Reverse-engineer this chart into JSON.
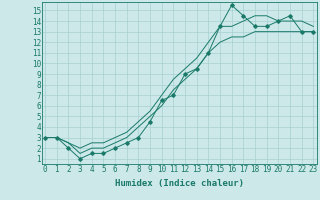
{
  "xlabel": "Humidex (Indice chaleur)",
  "bg_color": "#cce8e8",
  "grid_color": "#a8d0d0",
  "line_color": "#1a7a6a",
  "x_ticks": [
    0,
    1,
    2,
    3,
    4,
    5,
    6,
    7,
    8,
    9,
    10,
    11,
    12,
    13,
    14,
    15,
    16,
    17,
    18,
    19,
    20,
    21,
    22,
    23
  ],
  "y_ticks": [
    1,
    2,
    3,
    4,
    5,
    6,
    7,
    8,
    9,
    10,
    11,
    12,
    13,
    14,
    15
  ],
  "xlim": [
    -0.3,
    23.3
  ],
  "ylim": [
    0.5,
    15.8
  ],
  "line1_x": [
    0,
    1,
    2,
    3,
    4,
    5,
    6,
    7,
    8,
    9,
    10,
    11,
    12,
    13,
    14,
    15,
    16,
    17,
    18,
    19,
    20,
    21,
    22,
    23
  ],
  "line1_y": [
    3.0,
    3.0,
    2.0,
    1.0,
    1.5,
    1.5,
    2.0,
    2.5,
    3.0,
    4.5,
    6.5,
    7.0,
    9.0,
    9.5,
    11.0,
    13.5,
    15.5,
    14.5,
    13.5,
    13.5,
    14.0,
    14.5,
    13.0,
    13.0
  ],
  "line2_x": [
    0,
    1,
    2,
    3,
    4,
    5,
    6,
    7,
    8,
    9,
    10,
    11,
    12,
    13,
    14,
    15,
    16,
    17,
    18,
    19,
    20,
    21,
    22,
    23
  ],
  "line2_y": [
    3.0,
    3.0,
    2.5,
    1.5,
    2.0,
    2.0,
    2.5,
    3.0,
    4.0,
    5.0,
    6.0,
    7.5,
    8.5,
    9.5,
    11.0,
    12.0,
    12.5,
    12.5,
    13.0,
    13.0,
    13.0,
    13.0,
    13.0,
    13.0
  ],
  "line3_x": [
    0,
    1,
    2,
    3,
    4,
    5,
    6,
    7,
    8,
    9,
    10,
    11,
    12,
    13,
    14,
    15,
    16,
    17,
    18,
    19,
    20,
    21,
    22,
    23
  ],
  "line3_y": [
    3.0,
    3.0,
    2.5,
    2.0,
    2.5,
    2.5,
    3.0,
    3.5,
    4.5,
    5.5,
    7.0,
    8.5,
    9.5,
    10.5,
    12.0,
    13.5,
    13.5,
    14.0,
    14.5,
    14.5,
    14.0,
    14.0,
    14.0,
    13.5
  ],
  "tick_fontsize": 5.5,
  "label_fontsize": 6.5
}
